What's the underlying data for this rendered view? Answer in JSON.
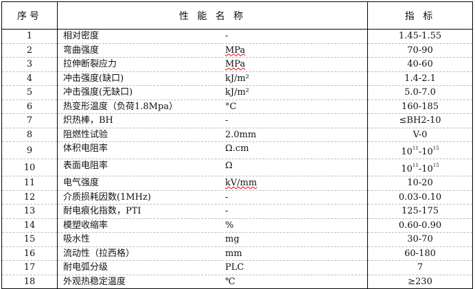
{
  "header": {
    "index": "序号",
    "property": "性 能 名 称",
    "value": "指 标"
  },
  "rows": [
    {
      "no": "1",
      "name": "相对密度",
      "unit": "-",
      "value": "1.45-1.55"
    },
    {
      "no": "2",
      "name": "弯曲强度",
      "unit": "MPa",
      "value": "70-90",
      "spellcheck": true
    },
    {
      "no": "3",
      "name": "拉伸断裂应力",
      "unit": "MPa",
      "value": "40-60",
      "spellcheck": true
    },
    {
      "no": "4",
      "name": "冲击强度(缺口)",
      "unit": "kJ/m²",
      "value": "1.4-2.1"
    },
    {
      "no": "5",
      "name": "冲击强度(无缺口)",
      "unit": "kJ/m²",
      "value": "5.0-7.0"
    },
    {
      "no": "6",
      "name": "热变形温度（负荷1.8Mpa）",
      "unit": "°C",
      "value": "160-185"
    },
    {
      "no": "7",
      "name": "炽热棒，BH",
      "unit": "-",
      "value": "≤BH2-10"
    },
    {
      "no": "8",
      "name": "阻燃性试验",
      "unit": "2.0mm",
      "value": "V-0"
    },
    {
      "no": "9",
      "name": "体积电阻率",
      "unit": "Ω.cm",
      "value_parts": [
        "10",
        "11",
        "-10",
        "15"
      ]
    },
    {
      "no": "10",
      "name": "表面电阻率",
      "unit": "Ω",
      "value_parts": [
        "10",
        "11",
        "-10",
        "15"
      ]
    },
    {
      "no": "11",
      "name": "电气强度",
      "unit": "kV/mm",
      "value": "10-20",
      "spellcheck": true
    },
    {
      "no": "12",
      "name": "介质损耗因数(1MHz)",
      "unit": "-",
      "value": "0.03-0.10"
    },
    {
      "no": "13",
      "name": "耐电痕化指数，PTI",
      "unit": "-",
      "value": "125-175"
    },
    {
      "no": "14",
      "name": "模塑收缩率",
      "unit": "%",
      "value": "0.60-0.90"
    },
    {
      "no": "15",
      "name": "吸水性",
      "unit": "mg",
      "value": "30-70"
    },
    {
      "no": "16",
      "name": "流动性（拉西格）",
      "unit": "mm",
      "value": "60-180"
    },
    {
      "no": "17",
      "name": "耐电弧分级",
      "unit": "PLC",
      "value": "7"
    },
    {
      "no": "18",
      "name": "外观热稳定温度",
      "unit": "℃",
      "value": "≥230"
    }
  ]
}
